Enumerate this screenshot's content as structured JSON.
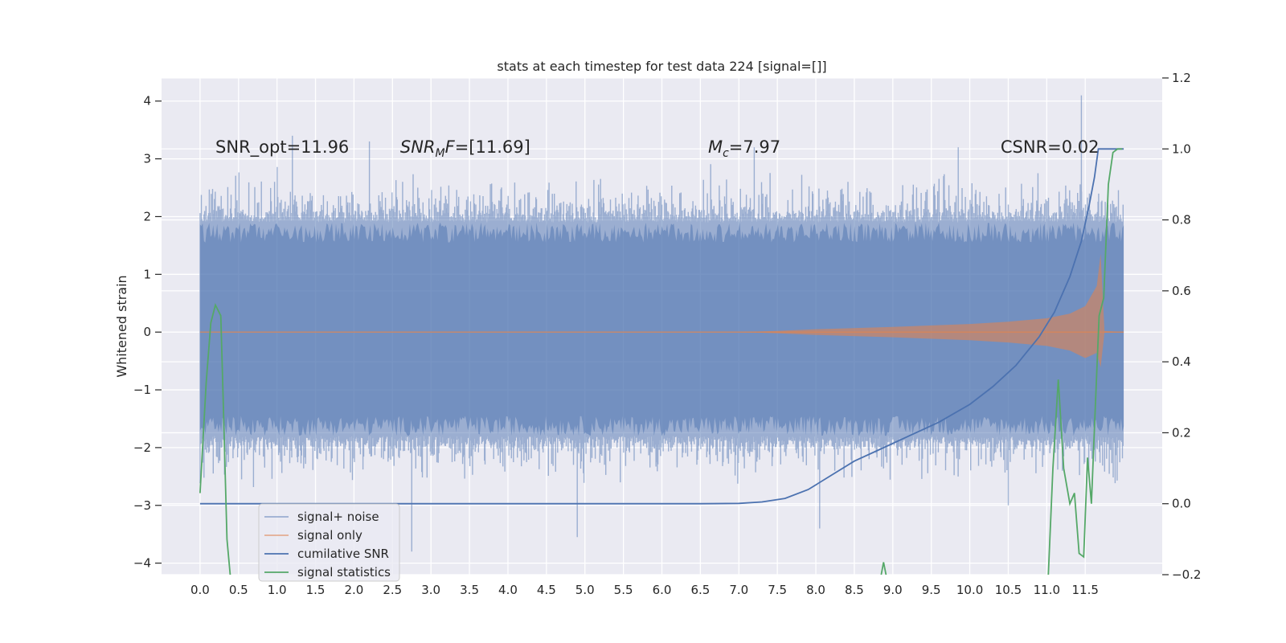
{
  "chart_data": {
    "type": "line",
    "title": "stats at each timestep for test data 224 [signal=[]]",
    "ylabel": "Whitened strain",
    "xlim": [
      -0.5,
      12.5
    ],
    "ylim": [
      -4.2,
      4.4
    ],
    "y2lim": [
      -0.2,
      1.2
    ],
    "x_ticks": [
      "0.0",
      "0.5",
      "1.0",
      "1.5",
      "2.0",
      "2.5",
      "3.0",
      "3.5",
      "4.0",
      "4.5",
      "5.0",
      "5.5",
      "6.0",
      "6.5",
      "7.0",
      "7.5",
      "8.0",
      "8.5",
      "9.0",
      "9.5",
      "10.0",
      "10.5",
      "11.0",
      "11.5"
    ],
    "y_ticks": [
      "4",
      "3",
      "2",
      "1",
      "0",
      "−1",
      "−2",
      "−3",
      "−4"
    ],
    "y2_ticks": [
      "1.2",
      "1.0",
      "0.8",
      "0.6",
      "0.4",
      "0.2",
      "0.0",
      "−0.2"
    ],
    "grid": true,
    "legend_position": "lower-left",
    "annotations": [
      {
        "text": "SNR_opt=11.96",
        "x": 0.2,
        "y": 3.2
      },
      {
        "prefix": "",
        "italic": "SNR",
        "sub": "M",
        "italic2": "F",
        "suffix": "=[11.69]",
        "x": 2.6,
        "y": 3.2
      },
      {
        "italic": "M",
        "sub": "c",
        "suffix": "=7.97",
        "x": 6.6,
        "y": 3.2
      },
      {
        "text": "CSNR=0.02",
        "x": 10.4,
        "y": 3.2
      }
    ],
    "series": [
      {
        "name": "signal+ noise",
        "color": "#4c72b0",
        "opacity": 0.5,
        "axis": "left",
        "envelope": {
          "x_start": 0.0,
          "x_end": 12.0,
          "typical_upper": 1.9,
          "typical_lower": -1.8,
          "max": 4.1,
          "min": -3.8
        }
      },
      {
        "name": "signal only",
        "color": "#dd8452",
        "opacity": 0.6,
        "axis": "left",
        "envelope": {
          "x": [
            0.0,
            7.0,
            7.5,
            8.0,
            9.0,
            10.0,
            10.5,
            11.0,
            11.3,
            11.5,
            11.65,
            11.7,
            11.75,
            12.0
          ],
          "amp": [
            0.0,
            0.0,
            0.02,
            0.05,
            0.09,
            0.14,
            0.18,
            0.24,
            0.32,
            0.45,
            0.8,
            1.35,
            0.02,
            0.0
          ]
        }
      },
      {
        "name": "cumilative SNR",
        "color": "#4c72b0",
        "opacity": 1.0,
        "axis": "right",
        "x": [
          0.0,
          6.5,
          7.0,
          7.3,
          7.6,
          7.9,
          8.2,
          8.5,
          8.8,
          9.2,
          9.6,
          10.0,
          10.3,
          10.6,
          10.9,
          11.1,
          11.3,
          11.45,
          11.55,
          11.62,
          11.67,
          12.0
        ],
        "y": [
          0.0,
          0.0,
          0.001,
          0.005,
          0.015,
          0.04,
          0.08,
          0.12,
          0.15,
          0.19,
          0.23,
          0.28,
          0.33,
          0.39,
          0.47,
          0.54,
          0.64,
          0.74,
          0.84,
          0.92,
          1.0,
          1.0
        ]
      },
      {
        "name": "signal statistics",
        "color": "#55a868",
        "opacity": 1.0,
        "axis": "right",
        "segments": [
          {
            "x": [
              0.0,
              0.08,
              0.14,
              0.2,
              0.27,
              0.3,
              0.35,
              0.4
            ],
            "y": [
              0.03,
              0.34,
              0.51,
              0.56,
              0.53,
              0.3,
              -0.1,
              -0.22
            ]
          },
          {
            "x": [
              8.85,
              8.88,
              8.93
            ],
            "y": [
              -0.2,
              -0.165,
              -0.22
            ]
          },
          {
            "x": [
              11.02,
              11.08,
              11.15,
              11.22,
              11.3,
              11.36,
              11.42,
              11.48,
              11.53,
              11.58,
              11.63,
              11.68,
              11.74,
              11.8,
              11.86,
              11.92,
              11.98
            ],
            "y": [
              -0.2,
              0.1,
              0.35,
              0.1,
              0.0,
              0.03,
              -0.14,
              -0.15,
              0.13,
              0.0,
              0.27,
              0.53,
              0.58,
              0.9,
              0.99,
              1.0,
              1.0
            ]
          }
        ]
      }
    ]
  }
}
